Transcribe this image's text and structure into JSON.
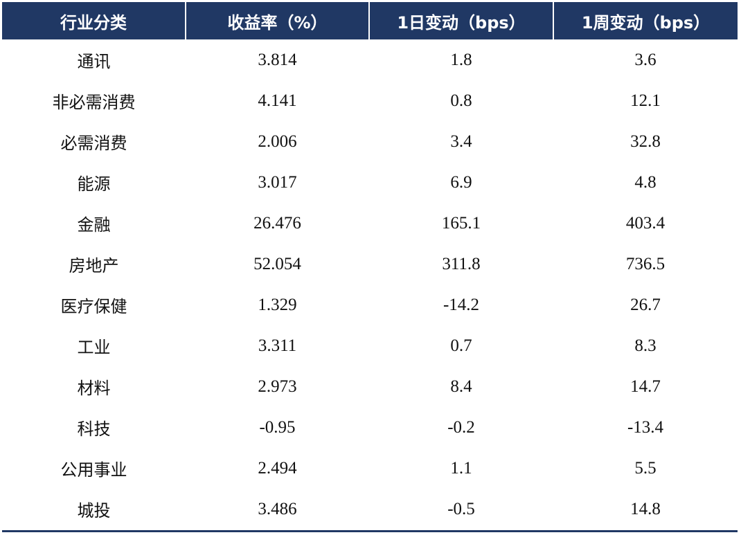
{
  "chart_data": {
    "type": "table",
    "columns": [
      "行业分类",
      "收益率（%）",
      "1日变动（bps）",
      "1周变动（bps）"
    ],
    "rows": [
      [
        "通讯",
        "3.814",
        "1.8",
        "3.6"
      ],
      [
        "非必需消费",
        "4.141",
        "0.8",
        "12.1"
      ],
      [
        "必需消费",
        "2.006",
        "3.4",
        "32.8"
      ],
      [
        "能源",
        "3.017",
        "6.9",
        "4.8"
      ],
      [
        "金融",
        "26.476",
        "165.1",
        "403.4"
      ],
      [
        "房地产",
        "52.054",
        "311.8",
        "736.5"
      ],
      [
        "医疗保健",
        "1.329",
        "-14.2",
        "26.7"
      ],
      [
        "工业",
        "3.311",
        "0.7",
        "8.3"
      ],
      [
        "材料",
        "2.973",
        "8.4",
        "14.7"
      ],
      [
        "科技",
        "-0.95",
        "-0.2",
        "-13.4"
      ],
      [
        "公用事业",
        "2.494",
        "1.1",
        "5.5"
      ],
      [
        "城投",
        "3.486",
        "-0.5",
        "14.8"
      ]
    ],
    "colors": {
      "header_bg": "#203864",
      "header_text": "#ffffff",
      "body_text": "#111111"
    }
  }
}
